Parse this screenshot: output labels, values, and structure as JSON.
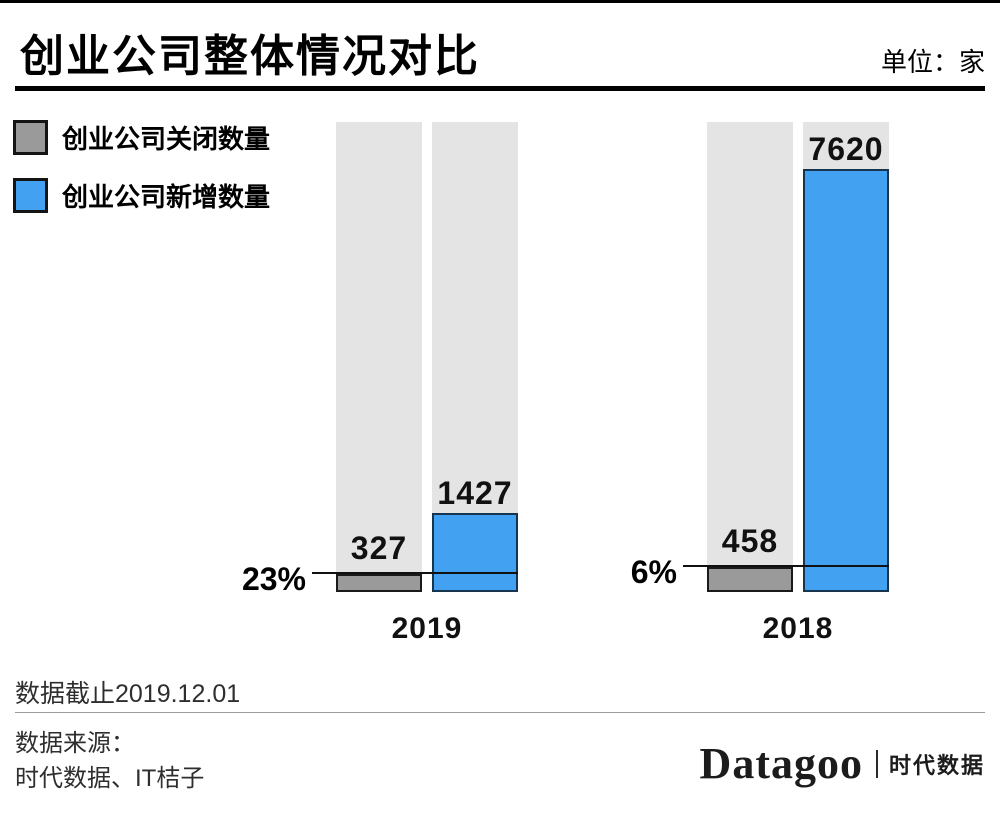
{
  "header": {
    "title": "创业公司整体情况对比",
    "unit_label": "单位：家"
  },
  "chart_data": {
    "type": "bar",
    "title": "创业公司整体情况对比",
    "unit": "家",
    "categories": [
      "2019",
      "2018"
    ],
    "series": [
      {
        "name": "创业公司关闭数量",
        "color": "#9a9a9a",
        "values": [
          327,
          458
        ]
      },
      {
        "name": "创业公司新增数量",
        "color": "#42a1f0",
        "values": [
          1427,
          7620
        ]
      }
    ],
    "ratio_labels": [
      "23%",
      "6%"
    ],
    "legend_position": "top-left",
    "grid": false,
    "background_tracks": true,
    "background_track_color": "#e4e4e4",
    "ylim": [
      0,
      8500
    ]
  },
  "footer": {
    "data_cutoff": "数据截止2019.12.01",
    "source_label": "数据来源：",
    "source_value": "时代数据、IT桔子",
    "logo": {
      "name": "Datagoo",
      "suffix": "时代数据"
    }
  }
}
